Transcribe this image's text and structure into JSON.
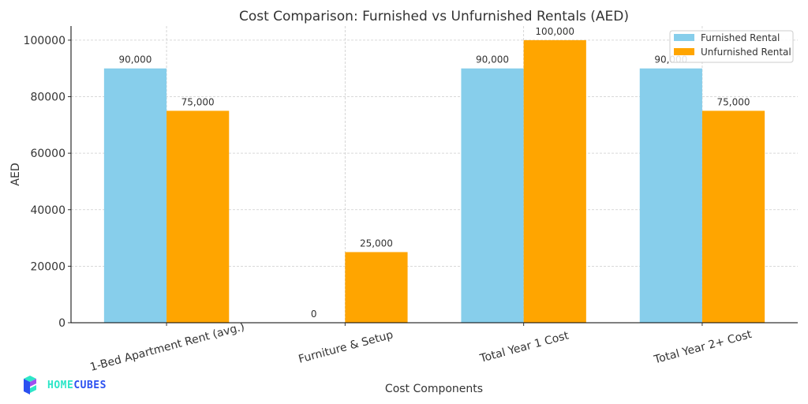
{
  "chart_data": {
    "type": "bar",
    "title": "Cost Comparison: Furnished vs Unfurnished Rentals (AED)",
    "xlabel": "Cost Components",
    "ylabel": "AED",
    "categories": [
      "1-Bed Apartment Rent (avg.)",
      "Furniture & Setup",
      "Total Year 1 Cost",
      "Total Year 2+ Cost"
    ],
    "series": [
      {
        "name": "Furnished Rental",
        "color": "#87CEEB",
        "values": [
          90000,
          0,
          90000,
          90000
        ],
        "labels": [
          "90,000",
          "0",
          "90,000",
          "90,000"
        ]
      },
      {
        "name": "Unfurnished Rental",
        "color": "#FFA500",
        "values": [
          75000,
          25000,
          100000,
          75000
        ],
        "labels": [
          "75,000",
          "25,000",
          "100,000",
          "75,000"
        ]
      }
    ],
    "ylim": [
      0,
      105000
    ],
    "yticks": [
      0,
      20000,
      40000,
      60000,
      80000,
      100000
    ],
    "ytick_labels": [
      "0",
      "20000",
      "40000",
      "60000",
      "80000",
      "100000"
    ],
    "grid": true,
    "legend": "top-right"
  },
  "logo": {
    "text_a": "HOME",
    "text_b": "CUBES",
    "color_a": "#2EE6C8",
    "color_b": "#2B50F0"
  }
}
